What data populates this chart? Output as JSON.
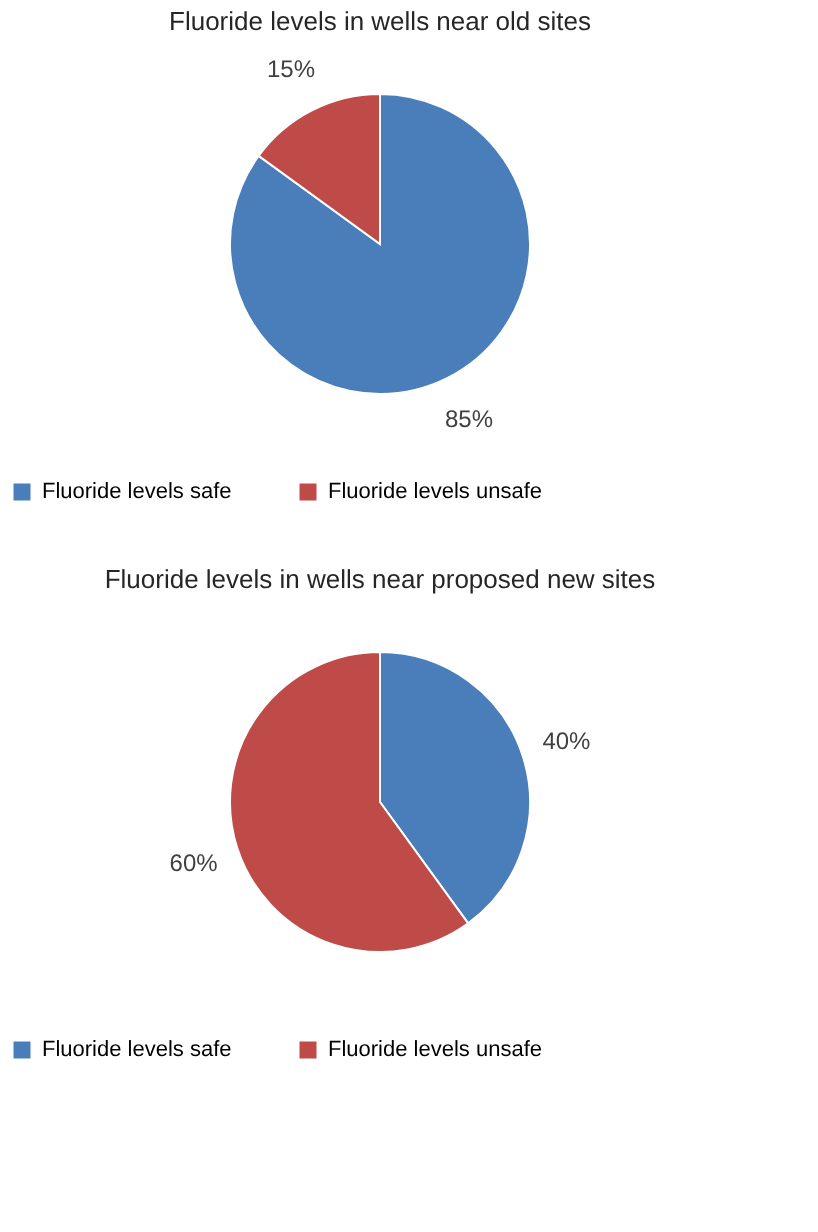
{
  "chart_data": [
    {
      "type": "pie",
      "title": "Fluoride levels in wells near old sites",
      "categories": [
        "Fluoride levels safe",
        "Fluoride levels unsafe"
      ],
      "values": [
        85,
        15
      ],
      "value_labels": [
        "85%",
        "15%"
      ],
      "colors": [
        "#4a7ebb",
        "#be4b48"
      ],
      "legend": "bottom"
    },
    {
      "type": "pie",
      "title": "Fluoride levels in wells near proposed new sites",
      "categories": [
        "Fluoride levels safe",
        "Fluoride levels unsafe"
      ],
      "values": [
        40,
        60
      ],
      "value_labels": [
        "40%",
        "60%"
      ],
      "colors": [
        "#4a7ebb",
        "#be4b48"
      ],
      "legend": "bottom"
    }
  ]
}
